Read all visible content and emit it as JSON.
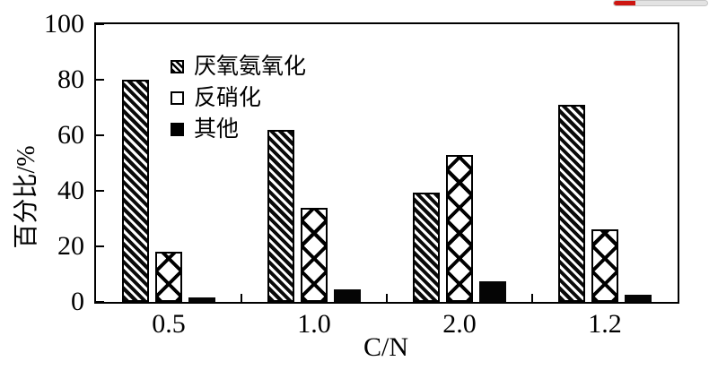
{
  "page": {
    "background": "#ffffff"
  },
  "progress_bar": {
    "fill_percent": 23,
    "fill_color": "#ce1611",
    "track_color": "#e3e3e3"
  },
  "chart_data": {
    "type": "bar",
    "title": "",
    "categories": [
      "0.5",
      "1.0",
      "2.0",
      "1.2"
    ],
    "series": [
      {
        "name": "厌氧氨氧化",
        "pattern": "diagonal-stripes",
        "values": [
          80,
          62,
          39.5,
          71
        ]
      },
      {
        "name": "反硝化",
        "pattern": "crosshatch-diamond",
        "values": [
          18,
          34,
          53,
          26
        ]
      },
      {
        "name": "其他",
        "pattern": "solid-black",
        "values": [
          1.5,
          4.5,
          7.5,
          2.5
        ]
      }
    ],
    "xlabel": "C/N",
    "ylabel": "百分比/%",
    "ylim": [
      0,
      100
    ],
    "yticks": [
      0,
      20,
      40,
      60,
      80,
      100
    ],
    "grid": false,
    "legend_position": "upper-left-inside",
    "axis_color": "#000000",
    "bar_fill_colors": [
      "#000000",
      "#ffffff",
      "#000000"
    ]
  }
}
